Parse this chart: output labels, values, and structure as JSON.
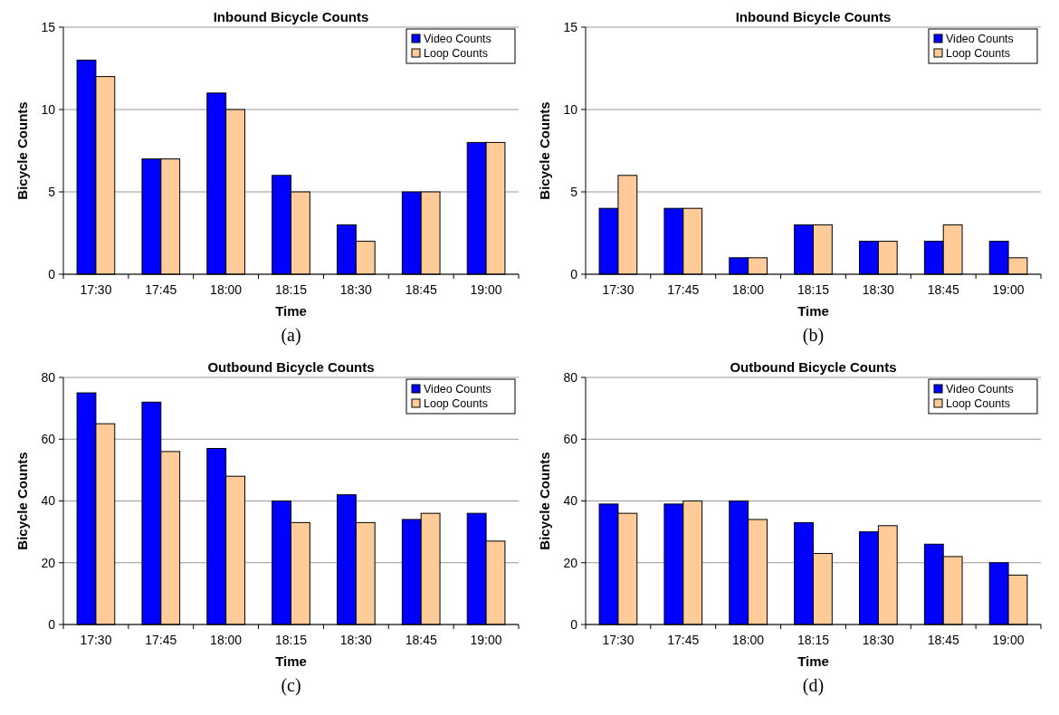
{
  "chart_data": [
    {
      "type": "bar",
      "title": "Inbound Bicycle Counts",
      "xlabel": "Time",
      "ylabel": "Bicycle Counts",
      "annotations": [
        "(a)"
      ],
      "categories": [
        "17:30",
        "17:45",
        "18:00",
        "18:15",
        "18:30",
        "18:45",
        "19:00"
      ],
      "series": [
        {
          "name": "Video Counts",
          "color": "#0000ff",
          "values": [
            13,
            7,
            11,
            6,
            3,
            5,
            8
          ]
        },
        {
          "name": "Loop Counts",
          "color": "#ffcc99",
          "values": [
            12,
            7,
            10,
            5,
            2,
            5,
            8
          ]
        }
      ],
      "ylim": [
        0,
        15
      ],
      "yticks": [
        0,
        5,
        10,
        15
      ],
      "grid": "y",
      "legend": "top right"
    },
    {
      "type": "bar",
      "title": "Inbound Bicycle Counts",
      "xlabel": "Time",
      "ylabel": "Bicycle Counts",
      "annotations": [
        "(b)"
      ],
      "categories": [
        "17:30",
        "17:45",
        "18:00",
        "18:15",
        "18:30",
        "18:45",
        "19:00"
      ],
      "series": [
        {
          "name": "Video Counts",
          "color": "#0000ff",
          "values": [
            4,
            4,
            1,
            3,
            2,
            2,
            2
          ]
        },
        {
          "name": "Loop Counts",
          "color": "#ffcc99",
          "values": [
            6,
            4,
            1,
            3,
            2,
            3,
            1
          ]
        }
      ],
      "ylim": [
        0,
        15
      ],
      "yticks": [
        0,
        5,
        10,
        15
      ],
      "grid": "y",
      "legend": "top right"
    },
    {
      "type": "bar",
      "title": "Outbound Bicycle Counts",
      "xlabel": "Time",
      "ylabel": "Bicycle Counts",
      "annotations": [
        "(c)"
      ],
      "categories": [
        "17:30",
        "17:45",
        "18:00",
        "18:15",
        "18:30",
        "18:45",
        "19:00"
      ],
      "series": [
        {
          "name": "Video Counts",
          "color": "#0000ff",
          "values": [
            75,
            72,
            57,
            40,
            42,
            34,
            36
          ]
        },
        {
          "name": "Loop Counts",
          "color": "#ffcc99",
          "values": [
            65,
            56,
            48,
            33,
            33,
            36,
            27
          ]
        }
      ],
      "ylim": [
        0,
        80
      ],
      "yticks": [
        0,
        20,
        40,
        60,
        80
      ],
      "grid": "y",
      "legend": "top right"
    },
    {
      "type": "bar",
      "title": "Outbound Bicycle Counts",
      "xlabel": "Time",
      "ylabel": "Bicycle Counts",
      "annotations": [
        "(d)"
      ],
      "categories": [
        "17:30",
        "17:45",
        "18:00",
        "18:15",
        "18:30",
        "18:45",
        "19:00"
      ],
      "series": [
        {
          "name": "Video Counts",
          "color": "#0000ff",
          "values": [
            39,
            39,
            40,
            33,
            30,
            26,
            20
          ]
        },
        {
          "name": "Loop Counts",
          "color": "#ffcc99",
          "values": [
            36,
            40,
            34,
            23,
            32,
            22,
            16
          ]
        }
      ],
      "ylim": [
        0,
        80
      ],
      "yticks": [
        0,
        20,
        40,
        60,
        80
      ],
      "grid": "y",
      "legend": "top right"
    }
  ]
}
